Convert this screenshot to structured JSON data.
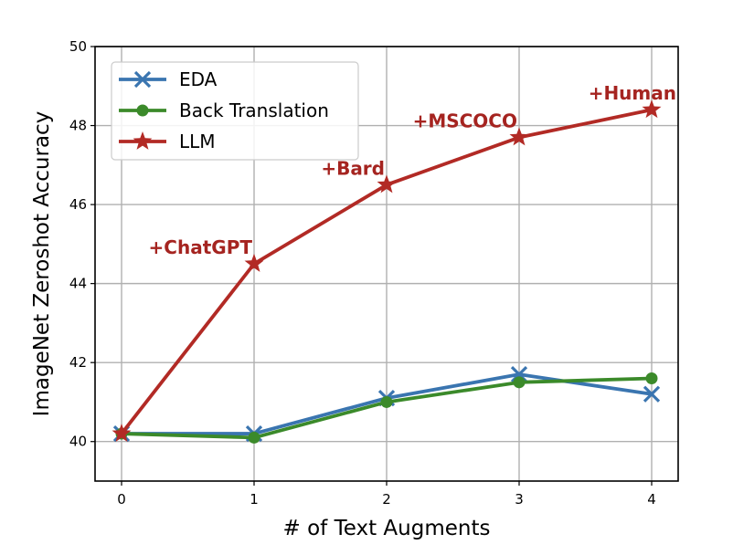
{
  "chart_data": {
    "type": "line",
    "xlabel": "# of Text Augments",
    "ylabel": "ImageNet Zeroshot Accuracy",
    "xlim": [
      -0.2,
      4.2
    ],
    "ylim": [
      39.0,
      50.0
    ],
    "xticks": [
      0,
      1,
      2,
      3,
      4
    ],
    "yticks": [
      40,
      42,
      44,
      46,
      48,
      50
    ],
    "grid": true,
    "legend_position": "top-left",
    "series": [
      {
        "name": "EDA",
        "marker": "x",
        "color": "#3a75b0",
        "x": [
          0,
          1,
          2,
          3,
          4
        ],
        "values": [
          40.2,
          40.2,
          41.1,
          41.7,
          41.2
        ]
      },
      {
        "name": "Back Translation",
        "marker": "circle",
        "color": "#3b8a2a",
        "x": [
          0,
          1,
          2,
          3,
          4
        ],
        "values": [
          40.2,
          40.1,
          41.0,
          41.5,
          41.6
        ]
      },
      {
        "name": "LLM",
        "marker": "star",
        "color": "#b22a25",
        "x": [
          0,
          1,
          2,
          3,
          4
        ],
        "values": [
          40.2,
          44.5,
          46.5,
          47.7,
          48.4
        ]
      }
    ],
    "annotations": [
      {
        "text": "+ChatGPT",
        "x": 1,
        "y": 44.5
      },
      {
        "text": "+Bard",
        "x": 2,
        "y": 46.5
      },
      {
        "text": "+MSCOCO",
        "x": 3,
        "y": 47.7
      },
      {
        "text": "+Human",
        "x": 4,
        "y": 48.4
      }
    ]
  }
}
